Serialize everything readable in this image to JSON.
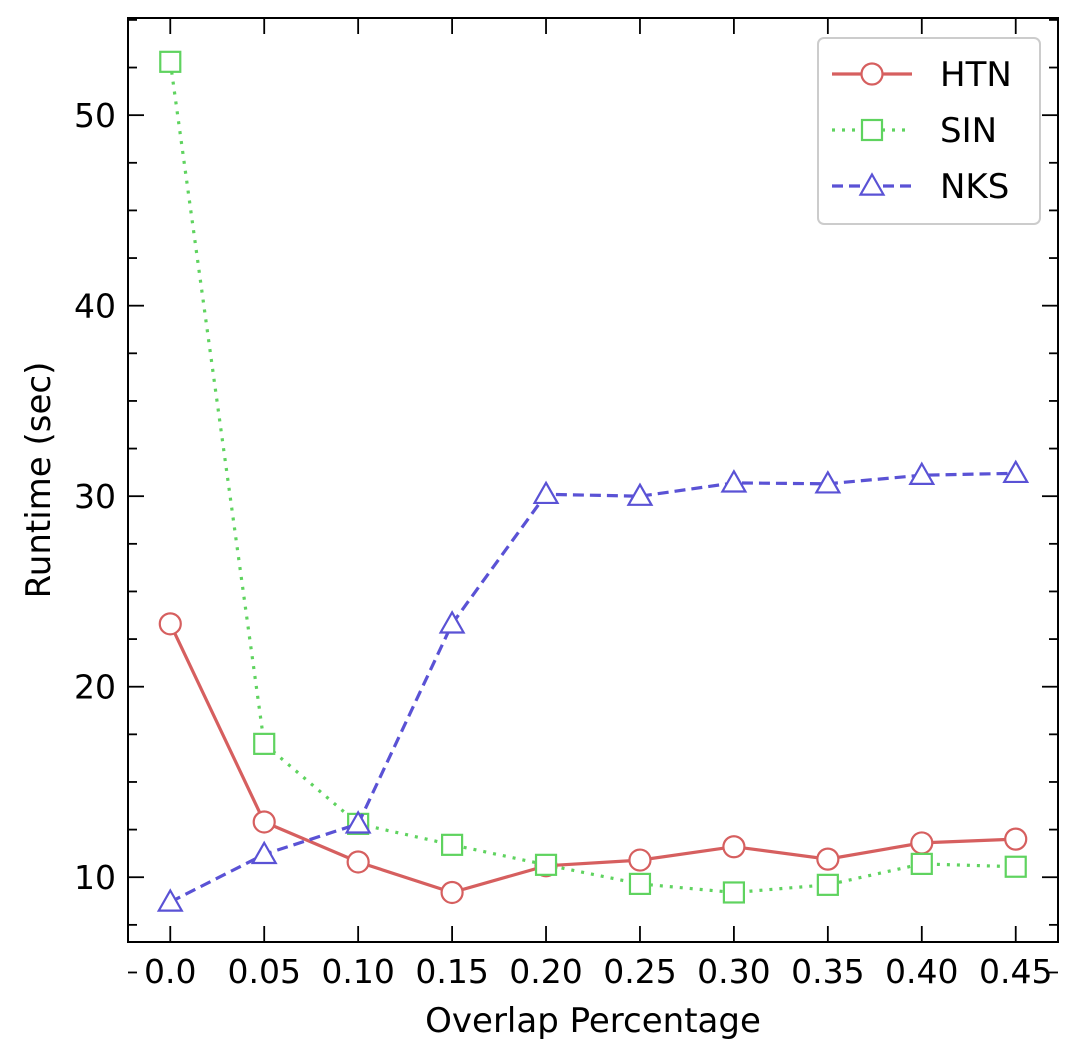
{
  "chart_data": {
    "type": "line",
    "title": "",
    "xlabel": "Overlap Percentage",
    "ylabel": "Runtime (sec)",
    "x": [
      0.0,
      0.05,
      0.1,
      0.15,
      0.2,
      0.25,
      0.3,
      0.35,
      0.4,
      0.45
    ],
    "x_tick_labels": [
      "0.0",
      "0.05",
      "0.10",
      "0.15",
      "0.20",
      "0.25",
      "0.30",
      "0.35",
      "0.40",
      "0.45"
    ],
    "y_ticks": [
      10,
      20,
      30,
      40,
      50
    ],
    "y_tick_labels": [
      "10",
      "20",
      "30",
      "40",
      "50"
    ],
    "xlim": [
      -0.0225,
      0.4725
    ],
    "ylim": [
      6.6,
      55.1
    ],
    "grid": false,
    "legend_position": "top-right",
    "series": [
      {
        "name": "HTN",
        "color": "#d65f5f",
        "line_style": "solid",
        "marker": "circle",
        "values": [
          23.3,
          12.9,
          10.8,
          9.2,
          10.6,
          10.9,
          11.6,
          10.95,
          11.8,
          12.0
        ]
      },
      {
        "name": "SIN",
        "color": "#5fd35f",
        "line_style": "dotted",
        "marker": "square",
        "values": [
          52.8,
          17.0,
          12.8,
          11.7,
          10.65,
          9.65,
          9.2,
          9.6,
          10.7,
          10.55
        ]
      },
      {
        "name": "NKS",
        "color": "#5a52d5",
        "line_style": "dashed",
        "marker": "triangle",
        "values": [
          8.7,
          11.2,
          12.8,
          23.3,
          30.1,
          30.0,
          30.7,
          30.65,
          31.1,
          31.2
        ]
      }
    ]
  }
}
